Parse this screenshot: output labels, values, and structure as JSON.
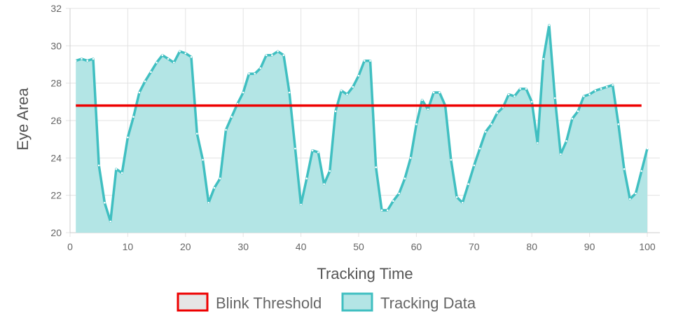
{
  "chart_data": {
    "type": "line",
    "title": "",
    "xlabel": "Tracking Time",
    "ylabel": "Eye Area",
    "xlim": [
      0,
      100
    ],
    "ylim": [
      20,
      32
    ],
    "x_ticks": [
      0,
      10,
      20,
      30,
      40,
      50,
      60,
      70,
      80,
      90,
      100
    ],
    "y_ticks": [
      20,
      22,
      24,
      26,
      28,
      30,
      32
    ],
    "grid": true,
    "legend_position": "bottom",
    "series": [
      {
        "name": "Blink Threshold",
        "color": "#ee0000",
        "fill": "#e6e6e6",
        "x": [
          1,
          99
        ],
        "values": [
          26.8,
          26.8
        ]
      },
      {
        "name": "Tracking Data",
        "color": "#40bfc1",
        "fill": "#b3e5e5",
        "x": [
          1,
          2,
          3,
          4,
          5,
          6,
          7,
          8,
          9,
          10,
          11,
          12,
          13,
          14,
          15,
          16,
          17,
          18,
          19,
          20,
          21,
          22,
          23,
          24,
          25,
          26,
          27,
          28,
          29,
          30,
          31,
          32,
          33,
          34,
          35,
          36,
          37,
          38,
          39,
          40,
          41,
          42,
          43,
          44,
          45,
          46,
          47,
          48,
          49,
          50,
          51,
          52,
          53,
          54,
          55,
          56,
          57,
          58,
          59,
          60,
          61,
          62,
          63,
          64,
          65,
          66,
          67,
          68,
          69,
          70,
          71,
          72,
          73,
          74,
          75,
          76,
          77,
          78,
          79,
          80,
          81,
          82,
          83,
          84,
          85,
          86,
          87,
          88,
          89,
          90,
          91,
          92,
          93,
          94,
          95,
          96,
          97,
          98,
          99,
          100
        ],
        "values": [
          29.2,
          29.3,
          29.2,
          29.3,
          23.6,
          21.6,
          20.6,
          23.4,
          23.2,
          25.1,
          26.2,
          27.5,
          28.1,
          28.6,
          29.1,
          29.5,
          29.3,
          29.1,
          29.7,
          29.6,
          29.4,
          25.3,
          23.9,
          21.6,
          22.4,
          22.9,
          25.5,
          26.2,
          26.9,
          27.5,
          28.5,
          28.5,
          28.8,
          29.5,
          29.5,
          29.7,
          29.5,
          27.5,
          24.5,
          21.5,
          22.9,
          24.4,
          24.3,
          22.6,
          23.3,
          26.5,
          27.6,
          27.4,
          27.8,
          28.4,
          29.2,
          29.2,
          23.5,
          21.2,
          21.2,
          21.7,
          22.1,
          22.9,
          24.0,
          25.8,
          27.1,
          26.6,
          27.5,
          27.5,
          26.8,
          23.9,
          21.9,
          21.6,
          22.6,
          23.6,
          24.5,
          25.4,
          25.8,
          26.4,
          26.7,
          27.4,
          27.3,
          27.7,
          27.7,
          27.0,
          24.8,
          29.3,
          31.1,
          27.2,
          24.2,
          24.9,
          26.1,
          26.5,
          27.3,
          27.4,
          27.6,
          27.7,
          27.8,
          27.9,
          25.8,
          23.4,
          21.8,
          22.1,
          23.3,
          24.5
        ]
      }
    ]
  }
}
